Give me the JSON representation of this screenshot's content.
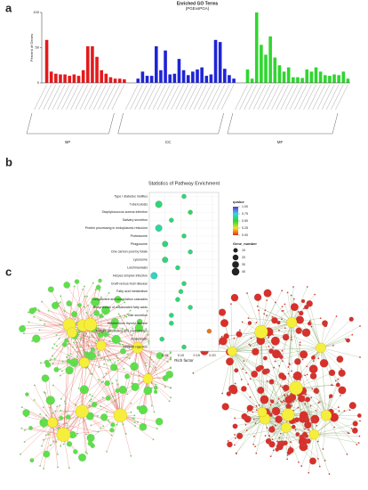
{
  "chart_data": [
    {
      "type": "bar",
      "panel": "a",
      "title": "Enriched GO Terms",
      "subtitle": "(PGEvsPGA)",
      "ylabel": "Percent of Genes",
      "ylim": [
        0,
        100
      ],
      "yticks": [
        0,
        50,
        100
      ],
      "series": [
        {
          "name": "BP",
          "color": "#e41a1c",
          "values": [
            61,
            16,
            13,
            12,
            12,
            10,
            12,
            10,
            18,
            52,
            52,
            37,
            18,
            13,
            8,
            6,
            6,
            5
          ]
        },
        {
          "name": "CC",
          "color": "#1f24d6",
          "values": [
            6,
            16,
            10,
            10,
            52,
            18,
            46,
            12,
            13,
            34,
            18,
            11,
            16,
            19,
            22,
            10,
            12,
            61,
            58,
            20,
            11,
            6
          ]
        },
        {
          "name": "MF",
          "color": "#2fd62f",
          "values": [
            19,
            6,
            100,
            54,
            40,
            66,
            36,
            25,
            16,
            22,
            8,
            8,
            7,
            19,
            16,
            22,
            16,
            11,
            10,
            12,
            11,
            16,
            6
          ]
        }
      ]
    },
    {
      "type": "scatter",
      "panel": "b",
      "title": "Statistics of Pathway Enrichment",
      "xlabel": "Rich factor",
      "xlim": [
        0,
        0.22
      ],
      "xticks": [
        {
          "value": 0.05,
          "label": "0.05"
        },
        {
          "value": 0.1,
          "label": "0.10"
        },
        {
          "value": 0.15,
          "label": "0.15"
        },
        {
          "value": 0.2,
          "label": "0.20"
        }
      ],
      "categories": [
        "Type I diabetes mellitus",
        "Tuberculosis",
        "Staphylococcus aureus infection",
        "Salivary secretion",
        "Protein processing in endoplasmic reticulum",
        "Proteasome",
        "Phagosome",
        "One carbon pool by folate",
        "Lysosome",
        "Leishmaniasis",
        "Herpes simplex infection",
        "Graft-versus-host disease",
        "Fatty acid metabolism",
        "Complement and coagulation cascades",
        "Biosynthesis of unsaturated fatty acids",
        "Bile secretion",
        "Autoimmune thyroid disease",
        "Antigen processing and presentation",
        "Amoebiasis",
        "Allograft rejection"
      ],
      "values": [
        0.11,
        0.03,
        0.13,
        0.07,
        0.03,
        0.11,
        0.05,
        0.13,
        0.05,
        0.09,
        0.015,
        0.11,
        0.1,
        0.09,
        0.13,
        0.07,
        0.07,
        0.19,
        0.04,
        0.11
      ],
      "gene_number": [
        10,
        30,
        10,
        10,
        30,
        10,
        20,
        10,
        20,
        10,
        30,
        10,
        10,
        10,
        10,
        10,
        10,
        10,
        10,
        10
      ],
      "qvalue": [
        0.6,
        0.6,
        0.55,
        0.6,
        0.65,
        0.6,
        0.6,
        0.6,
        0.6,
        0.6,
        0.7,
        0.6,
        0.6,
        0.6,
        0.6,
        0.6,
        0.6,
        0.1,
        0.6,
        0.6
      ],
      "color_legend": {
        "title": "qvalue",
        "ticks": [
          {
            "value": 1,
            "label": "1.00"
          },
          {
            "value": 0.75,
            "label": "0.75"
          },
          {
            "value": 0.5,
            "label": "0.50"
          },
          {
            "value": 0.25,
            "label": "0.25"
          },
          {
            "value": 0,
            "label": "0.00"
          }
        ]
      },
      "size_legend": {
        "title": "Gene_number",
        "values": [
          10,
          20,
          30,
          40
        ]
      }
    }
  ],
  "networks": {
    "panel": "c"
  }
}
